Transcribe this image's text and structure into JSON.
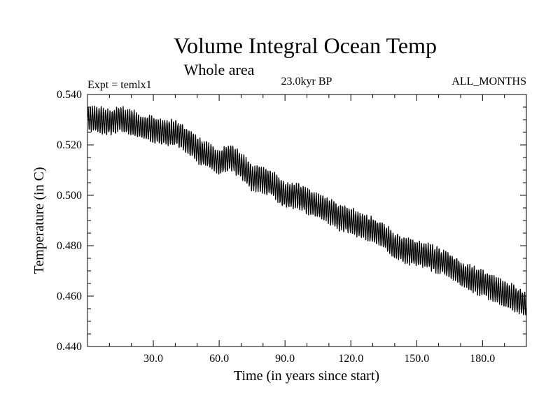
{
  "chart_data": {
    "type": "line",
    "title": "Volume Integral Ocean Temp",
    "subtitle": "Whole area",
    "annotation_left": "Expt = temlx1",
    "annotation_center": "23.0kyr BP",
    "annotation_right": "ALL_MONTHS",
    "xlabel": "Time (in years since start)",
    "ylabel": "Temperature (in C)",
    "xlim": [
      0,
      200
    ],
    "ylim": [
      0.44,
      0.54
    ],
    "x_ticks": [
      30,
      60,
      90,
      120,
      150,
      180
    ],
    "x_tick_labels": [
      "30.0",
      "60.0",
      "90.0",
      "120.0",
      "150.0",
      "180.0"
    ],
    "y_ticks": [
      0.44,
      0.46,
      0.48,
      0.5,
      0.52,
      0.54
    ],
    "y_tick_labels": [
      "0.440",
      "0.460",
      "0.480",
      "0.500",
      "0.520",
      "0.540"
    ],
    "grid": false,
    "line_color": "#000000",
    "seasonal_amplitude": 0.0045,
    "series": [
      {
        "name": "Volume Integral Ocean Temp",
        "x": [
          0,
          5,
          10,
          15,
          20,
          25,
          30,
          35,
          40,
          45,
          50,
          55,
          60,
          65,
          70,
          75,
          80,
          85,
          90,
          95,
          100,
          105,
          110,
          115,
          120,
          125,
          130,
          135,
          140,
          145,
          150,
          155,
          160,
          165,
          170,
          175,
          180,
          185,
          190,
          195,
          200
        ],
        "mean": [
          0.531,
          0.53,
          0.529,
          0.53,
          0.529,
          0.527,
          0.526,
          0.525,
          0.525,
          0.522,
          0.518,
          0.516,
          0.513,
          0.515,
          0.512,
          0.507,
          0.506,
          0.504,
          0.5,
          0.5,
          0.498,
          0.496,
          0.494,
          0.491,
          0.49,
          0.488,
          0.486,
          0.484,
          0.48,
          0.478,
          0.477,
          0.476,
          0.474,
          0.472,
          0.469,
          0.467,
          0.465,
          0.463,
          0.461,
          0.459,
          0.456
        ]
      }
    ]
  }
}
